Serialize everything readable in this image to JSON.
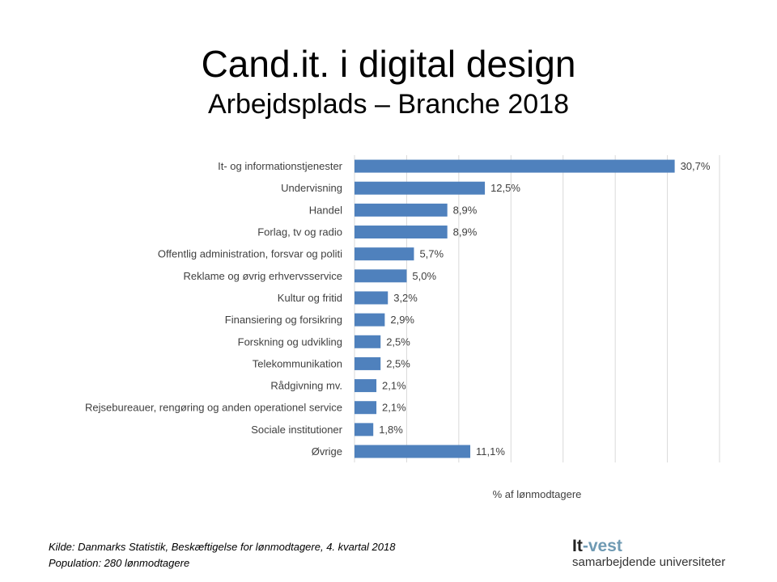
{
  "title": "Cand.it. i digital design",
  "subtitle": "Arbejdsplads – Branche 2018",
  "chart_data": {
    "type": "bar",
    "orientation": "horizontal",
    "categories": [
      "It- og informationstjenester",
      "Undervisning",
      "Handel",
      "Forlag, tv og radio",
      "Offentlig administration, forsvar og politi",
      "Reklame og øvrig erhvervsservice",
      "Kultur og fritid",
      "Finansiering og forsikring",
      "Forskning og udvikling",
      "Telekommunikation",
      "Rådgivning mv.",
      "Rejsebureauer, rengøring og anden operationel service",
      "Sociale institutioner",
      "Øvrige"
    ],
    "values": [
      30.7,
      12.5,
      8.9,
      8.9,
      5.7,
      5.0,
      3.2,
      2.9,
      2.5,
      2.5,
      2.1,
      2.1,
      1.8,
      11.1
    ],
    "data_labels": [
      "30,7%",
      "12,5%",
      "8,9%",
      "8,9%",
      "5,7%",
      "5,0%",
      "3,2%",
      "2,9%",
      "2,5%",
      "2,5%",
      "2,1%",
      "2,1%",
      "1,8%",
      "11,1%"
    ],
    "xlabel": "% af lønmodtagere",
    "xlim": [
      0,
      35
    ],
    "grid": true,
    "bar_color": "#4f81bd"
  },
  "footer": {
    "source": "Kilde: Danmarks Statistik, Beskæftigelse for lønmodtagere, 4. kvartal 2018",
    "population": "Population: 280 lønmodtagere"
  },
  "logo": {
    "part1": "It",
    "part2": "-vest",
    "tagline": "samarbejdende universiteter"
  }
}
